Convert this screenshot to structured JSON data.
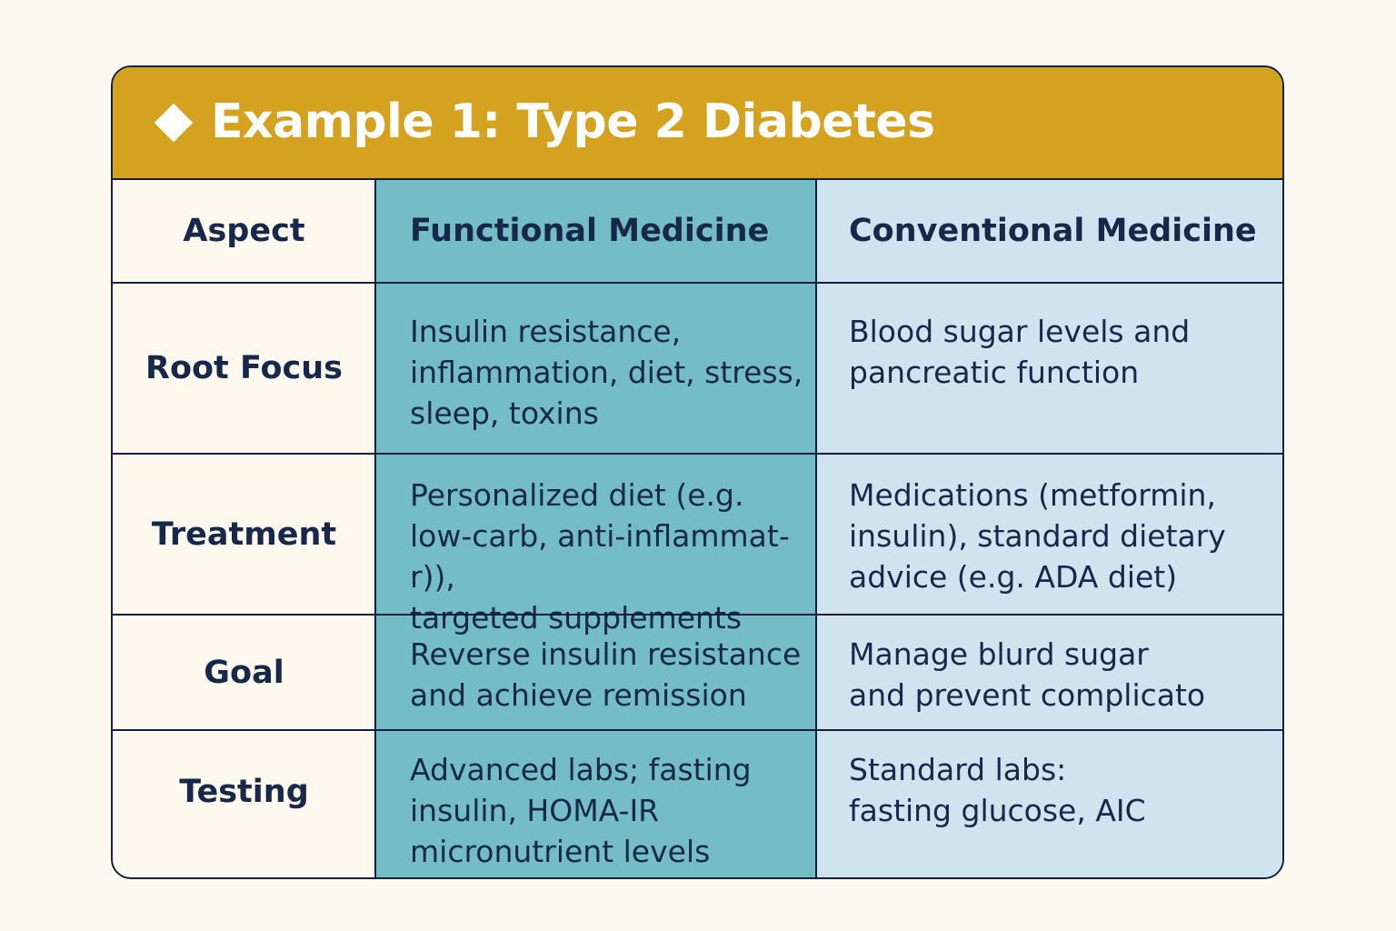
{
  "title": "Example 1: Type 2 Diabetes",
  "colors": {
    "banner": "#d5a21f",
    "functional_column": "#75bdc6",
    "conventional_column": "#cfe4ef",
    "border": "#142041",
    "text": "#17284a",
    "background": "#fcf9f0"
  },
  "icon": "diamond-icon",
  "headers": {
    "aspect": "Aspect",
    "functional": "Functional Medicine",
    "conventional": "Conventional Medicine"
  },
  "rows": [
    {
      "aspect": "Root Focus",
      "functional": "Insulin resistance,\ninflammation, diet, stress,\nsleep, toxins",
      "conventional": "Blood sugar levels and\npancreatic function"
    },
    {
      "aspect": "Treatment",
      "functional": "Personalized diet (e.g.\nlow-carb, anti-inflammat-r)),\ntargeted supplements",
      "conventional": "Medications (metformin,\ninsulin), standard dietary\nadvice (e.g. ADA diet)"
    },
    {
      "aspect": "Goal",
      "functional": "Reverse insulin resistance\nand achieve remission",
      "conventional": "Manage blurd sugar\nand prevent complicato"
    },
    {
      "aspect": "Testing",
      "functional": "Advanced labs; fasting\ninsulin, HOMA-IR\nmicronutrient levels",
      "conventional": "Standard labs:\nfasting glucose, AIC"
    }
  ]
}
